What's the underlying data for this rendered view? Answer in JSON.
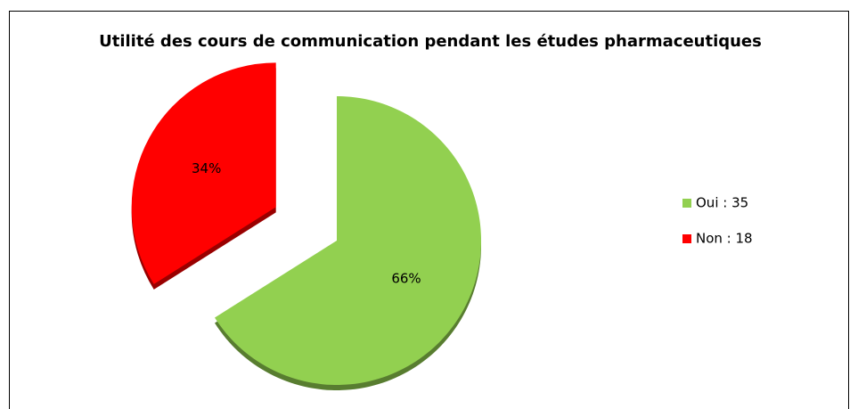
{
  "chart_data": {
    "type": "pie",
    "title": "Utilité des cours de communication pendant les études pharmaceutiques",
    "categories": [
      "Oui : 35",
      "Non : 18"
    ],
    "values": [
      35,
      18
    ],
    "value_labels": [
      "66%",
      "34%"
    ],
    "colors": [
      "#92d050",
      "#ff0000"
    ],
    "legend": "right"
  }
}
